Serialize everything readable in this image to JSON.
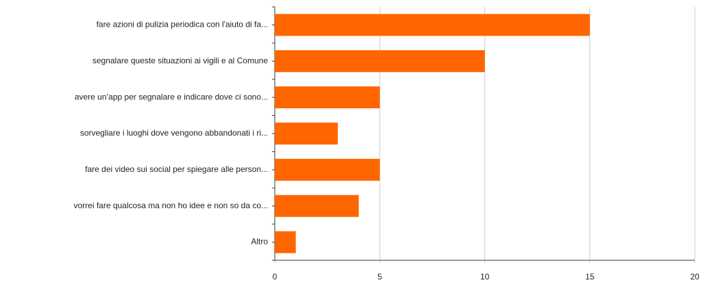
{
  "chart_data": {
    "type": "hbar",
    "categories": [
      "fare azioni di pulizia periodica con l'aiuto di fa...",
      "segnalare queste situazioni ai vigili e al Comune",
      "avere un’app per segnalare e indicare dove ci sono...",
      "sorvegliare i luoghi dove vengono abbandonati i ri...",
      "fare dei video sui social per spiegare alle person...",
      "vorrei fare qualcosa ma non ho idee e non so da co...",
      "Altro"
    ],
    "values": [
      15,
      10,
      5,
      3,
      5,
      4,
      1
    ],
    "color": "#ff6600",
    "xlim": [
      0,
      20
    ],
    "xticks": [
      0,
      5,
      10,
      15,
      20
    ],
    "grid": true
  }
}
